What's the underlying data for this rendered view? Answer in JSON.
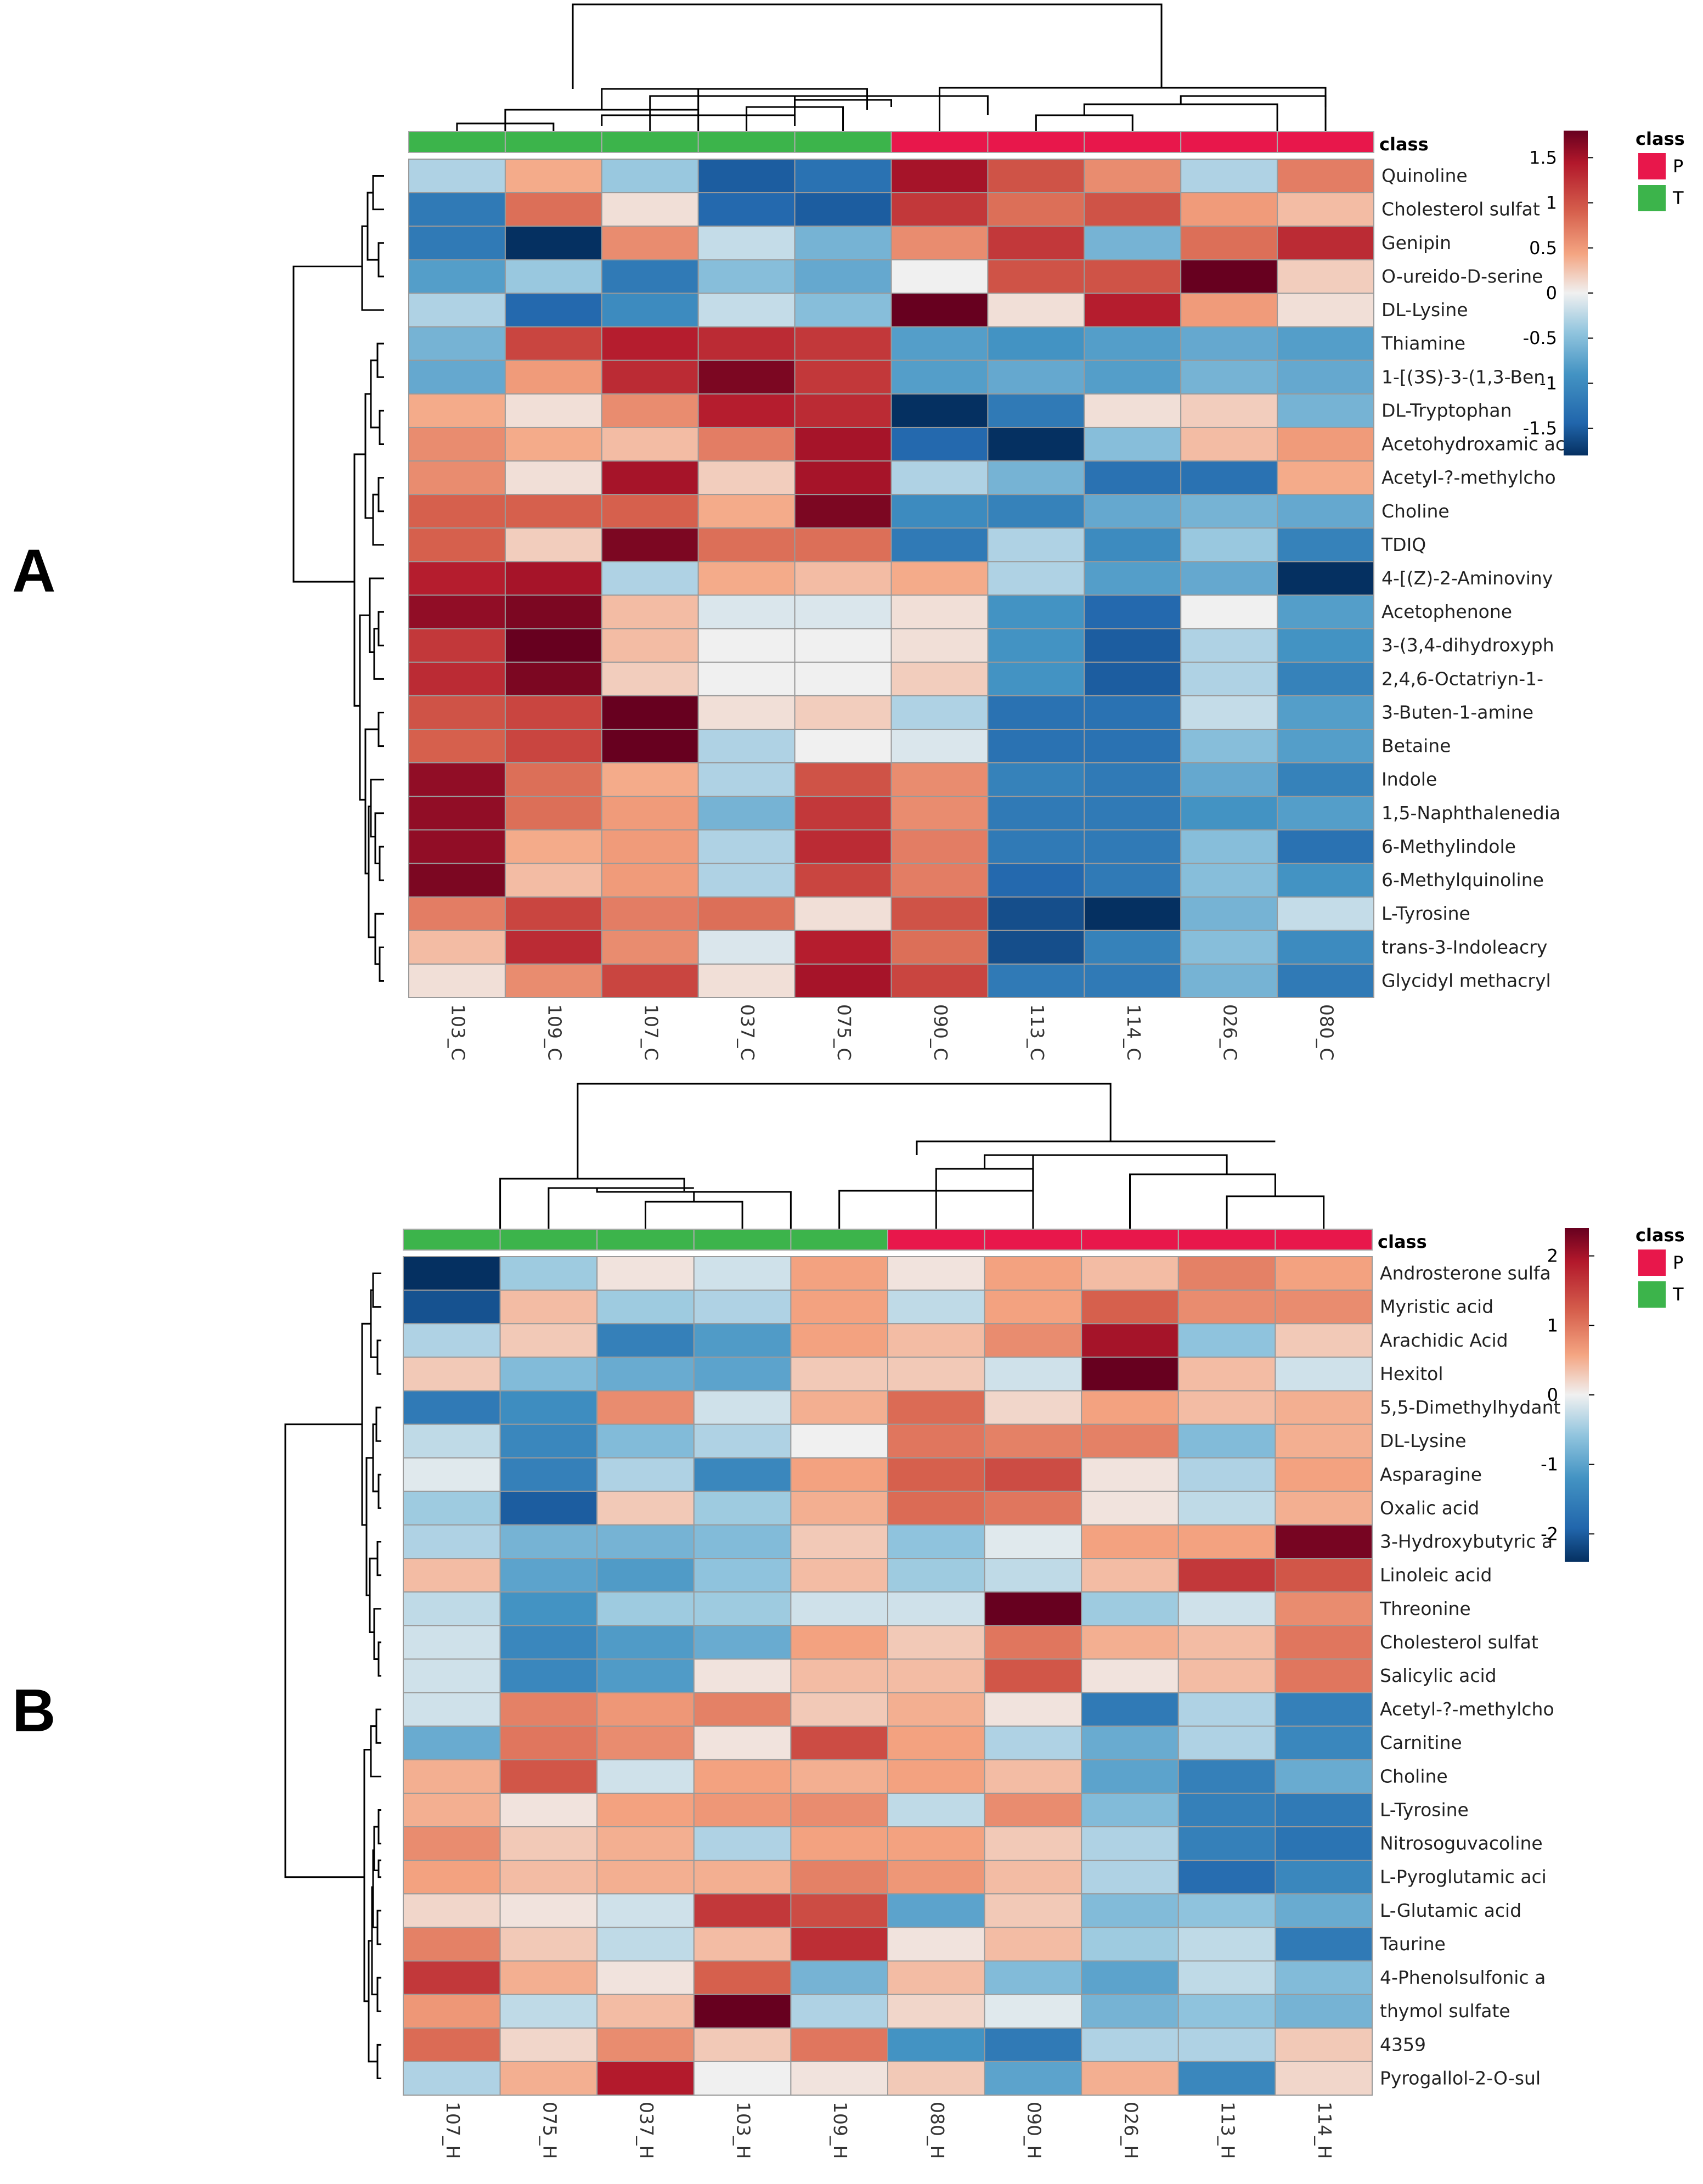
{
  "panels": [
    {
      "letter": "A",
      "chart_data": {
        "type": "heatmap",
        "title": "",
        "class_label": "class",
        "classes": [
          {
            "name": "P",
            "color": "#e8174b"
          },
          {
            "name": "T",
            "color": "#3cb44b"
          }
        ],
        "columns": [
          "103_C",
          "109_C",
          "107_C",
          "037_C",
          "075_C",
          "090_C",
          "113_C",
          "114_C",
          "026_C",
          "080_C"
        ],
        "column_classes": [
          "T",
          "T",
          "T",
          "T",
          "T",
          "P",
          "P",
          "P",
          "P",
          "P"
        ],
        "rows": [
          "Quinoline",
          "Cholesterol sulfat",
          "Genipin",
          "O-ureido-D-serine",
          "DL-Lysine",
          "Thiamine",
          "1-[(3S)-3-(1,3-Ben",
          "DL-Tryptophan",
          "Acetohydroxamic ac",
          "Acetyl-?-methylcho",
          "Choline",
          "TDIQ",
          "4-[(Z)-2-Aminoviny",
          "Acetophenone",
          "3-(3,4-dihydroxyph",
          "2,4,6-Octatriyn-1-",
          "3-Buten-1-amine",
          "Betaine",
          "Indole",
          "1,5-Naphthalenedia",
          "6-Methylindole",
          "6-Methylquinoline",
          "L-Tyrosine",
          "trans-3-Indoleacry",
          "Glycidyl methacryl"
        ],
        "values": [
          [
            -0.3,
            0.4,
            -0.4,
            -1.5,
            -1.3,
            1.5,
            1.0,
            0.6,
            -0.3,
            0.7
          ],
          [
            -1.2,
            0.8,
            0.1,
            -1.4,
            -1.5,
            1.2,
            0.8,
            1.0,
            0.5,
            0.3
          ],
          [
            -1.2,
            -1.9,
            0.6,
            -0.2,
            -0.6,
            0.6,
            1.2,
            -0.6,
            0.8,
            1.3
          ],
          [
            -0.8,
            -0.4,
            -1.2,
            -0.5,
            -0.7,
            0.0,
            1.0,
            1.0,
            1.8,
            0.2
          ],
          [
            -0.3,
            -1.4,
            -1.0,
            -0.2,
            -0.5,
            1.8,
            0.1,
            1.4,
            0.5,
            0.1
          ],
          [
            -0.6,
            1.1,
            1.4,
            1.3,
            1.2,
            -0.8,
            -0.9,
            -0.8,
            -0.7,
            -0.8
          ],
          [
            -0.7,
            0.5,
            1.3,
            1.7,
            1.2,
            -0.8,
            -0.7,
            -0.8,
            -0.6,
            -0.7
          ],
          [
            0.4,
            0.1,
            0.6,
            1.4,
            1.3,
            -1.8,
            -1.2,
            0.1,
            0.2,
            -0.6
          ],
          [
            0.6,
            0.4,
            0.3,
            0.7,
            1.5,
            -1.4,
            -1.8,
            -0.5,
            0.3,
            0.5
          ],
          [
            0.6,
            0.1,
            1.5,
            0.2,
            1.5,
            -0.3,
            -0.6,
            -1.3,
            -1.3,
            0.4
          ],
          [
            0.9,
            0.9,
            0.9,
            0.4,
            1.7,
            -1.0,
            -1.1,
            -0.7,
            -0.6,
            -0.7
          ],
          [
            0.9,
            0.2,
            1.7,
            0.8,
            0.8,
            -1.2,
            -0.3,
            -1.0,
            -0.4,
            -1.1
          ],
          [
            1.4,
            1.5,
            -0.3,
            0.4,
            0.3,
            0.4,
            -0.3,
            -0.8,
            -0.7,
            -1.9
          ],
          [
            1.6,
            1.7,
            0.3,
            -0.1,
            -0.1,
            0.1,
            -0.9,
            -1.4,
            0.0,
            -0.8
          ],
          [
            1.2,
            1.8,
            0.3,
            0.0,
            0.0,
            0.1,
            -0.9,
            -1.5,
            -0.3,
            -0.9
          ],
          [
            1.3,
            1.7,
            0.2,
            0.0,
            0.0,
            0.2,
            -0.9,
            -1.5,
            -0.3,
            -1.1
          ],
          [
            1.0,
            1.1,
            1.8,
            0.1,
            0.2,
            -0.3,
            -1.3,
            -1.3,
            -0.2,
            -0.8
          ],
          [
            0.9,
            1.1,
            1.8,
            -0.3,
            0.0,
            -0.1,
            -1.3,
            -1.3,
            -0.5,
            -0.8
          ],
          [
            1.6,
            0.8,
            0.4,
            -0.3,
            1.0,
            0.6,
            -1.1,
            -1.2,
            -0.7,
            -1.1
          ],
          [
            1.6,
            0.8,
            0.5,
            -0.6,
            1.2,
            0.6,
            -1.2,
            -1.2,
            -0.9,
            -0.8
          ],
          [
            1.6,
            0.4,
            0.5,
            -0.3,
            1.3,
            0.7,
            -1.2,
            -1.2,
            -0.5,
            -1.3
          ],
          [
            1.7,
            0.3,
            0.5,
            -0.3,
            1.1,
            0.7,
            -1.4,
            -1.2,
            -0.5,
            -0.9
          ],
          [
            0.7,
            1.1,
            0.7,
            0.8,
            0.1,
            1.0,
            -1.6,
            -1.8,
            -0.6,
            -0.2
          ],
          [
            0.3,
            1.3,
            0.6,
            -0.1,
            1.4,
            0.8,
            -1.6,
            -1.1,
            -0.5,
            -1.0
          ],
          [
            0.1,
            0.6,
            1.1,
            0.1,
            1.5,
            1.1,
            -1.2,
            -1.2,
            -0.6,
            -1.2
          ]
        ],
        "color_scale": {
          "min": -1.8,
          "max": 1.8,
          "ticks": [
            "1.5",
            "1",
            "0.5",
            "0",
            "-0.5",
            "-1",
            "-1.5"
          ],
          "tick_values": [
            1.5,
            1,
            0.5,
            0,
            -0.5,
            -1,
            -1.5
          ]
        }
      }
    },
    {
      "letter": "B",
      "chart_data": {
        "type": "heatmap",
        "title": "",
        "class_label": "class",
        "classes": [
          {
            "name": "P",
            "color": "#e8174b"
          },
          {
            "name": "T",
            "color": "#3cb44b"
          }
        ],
        "columns": [
          "107_H",
          "075_H",
          "037_H",
          "103_H",
          "109_H",
          "080_H",
          "090_H",
          "026_H",
          "113_H",
          "114_H"
        ],
        "column_classes": [
          "T",
          "T",
          "T",
          "T",
          "T",
          "P",
          "P",
          "P",
          "P",
          "P"
        ],
        "rows": [
          "Androsterone sulfa",
          "Myristic acid",
          "Arachidic Acid",
          "Hexitol",
          "5,5-Dimethylhydant",
          "DL-Lysine",
          "Asparagine",
          "Oxalic acid",
          "3-Hydroxybutyric a",
          "Linoleic acid",
          "Threonine",
          "Cholesterol sulfat",
          "Salicylic acid",
          "Acetyl-?-methylcho",
          "Carnitine",
          "Choline",
          "L-Tyrosine",
          "Nitrosoguvacoline",
          "L-Pyroglutamic aci",
          "L-Glutamic acid",
          "Taurine",
          "4-Phenolsulfonic a",
          "thymol sulfate",
          "4359",
          "Pyrogallol-2-O-sul"
        ],
        "values": [
          [
            -2.4,
            -0.5,
            0.1,
            -0.2,
            0.6,
            0.1,
            0.6,
            0.4,
            0.9,
            0.6
          ],
          [
            -2.1,
            0.4,
            -0.5,
            -0.4,
            0.6,
            -0.3,
            0.6,
            1.2,
            0.8,
            0.8
          ],
          [
            -0.4,
            0.3,
            -1.5,
            -1.1,
            0.6,
            0.4,
            0.8,
            2.0,
            -0.6,
            0.3
          ],
          [
            0.3,
            -0.7,
            -0.9,
            -1.0,
            0.3,
            0.3,
            -0.2,
            2.4,
            0.4,
            -0.2
          ],
          [
            -1.6,
            -1.3,
            0.8,
            -0.2,
            0.5,
            1.1,
            0.2,
            0.6,
            0.4,
            0.5
          ],
          [
            -0.3,
            -1.4,
            -0.7,
            -0.4,
            0.0,
            1.0,
            0.9,
            0.9,
            -0.7,
            0.5
          ],
          [
            -0.1,
            -1.5,
            -0.4,
            -1.4,
            0.6,
            1.2,
            1.4,
            0.1,
            -0.4,
            0.6
          ],
          [
            -0.5,
            -2.0,
            0.3,
            -0.5,
            0.5,
            1.1,
            1.0,
            0.1,
            -0.3,
            0.5
          ],
          [
            -0.4,
            -0.8,
            -0.8,
            -0.7,
            0.3,
            -0.6,
            -0.1,
            0.6,
            0.6,
            2.3
          ],
          [
            0.4,
            -1.0,
            -1.1,
            -0.6,
            0.4,
            -0.5,
            -0.3,
            0.4,
            1.6,
            1.3
          ],
          [
            -0.3,
            -1.2,
            -0.5,
            -0.5,
            -0.2,
            -0.2,
            2.4,
            -0.5,
            -0.2,
            0.8
          ],
          [
            -0.2,
            -1.4,
            -1.1,
            -0.9,
            0.6,
            0.3,
            1.0,
            0.5,
            0.4,
            1.0
          ],
          [
            -0.2,
            -1.4,
            -1.1,
            0.1,
            0.4,
            0.4,
            1.3,
            0.1,
            0.4,
            1.0
          ],
          [
            -0.2,
            0.9,
            0.7,
            0.9,
            0.3,
            0.5,
            0.1,
            -1.6,
            -0.4,
            -1.5
          ],
          [
            -0.9,
            1.0,
            0.8,
            0.1,
            1.4,
            0.6,
            -0.4,
            -0.9,
            -0.4,
            -1.4
          ],
          [
            0.5,
            1.3,
            -0.2,
            0.6,
            0.5,
            0.6,
            0.4,
            -1.0,
            -1.5,
            -0.9
          ],
          [
            0.5,
            0.1,
            0.6,
            0.7,
            0.8,
            -0.3,
            0.8,
            -0.7,
            -1.5,
            -1.6
          ],
          [
            0.8,
            0.3,
            0.5,
            -0.4,
            0.6,
            0.6,
            0.3,
            -0.4,
            -1.5,
            -1.7
          ],
          [
            0.6,
            0.4,
            0.5,
            0.5,
            0.9,
            0.7,
            0.4,
            -0.4,
            -1.8,
            -1.4
          ],
          [
            0.2,
            0.1,
            -0.2,
            1.6,
            1.4,
            -1.0,
            0.3,
            -0.7,
            -0.6,
            -0.9
          ],
          [
            0.9,
            0.3,
            -0.3,
            0.4,
            1.7,
            0.1,
            0.4,
            -0.5,
            -0.3,
            -1.6
          ],
          [
            1.6,
            0.5,
            0.1,
            1.2,
            -0.8,
            0.4,
            -0.7,
            -1.0,
            -0.3,
            -0.7
          ],
          [
            0.7,
            -0.3,
            0.4,
            2.4,
            -0.4,
            0.2,
            -0.1,
            -0.8,
            -0.6,
            -0.8
          ],
          [
            1.1,
            0.2,
            0.8,
            0.3,
            1.0,
            -1.2,
            -1.6,
            -0.4,
            -0.4,
            0.3
          ],
          [
            -0.4,
            0.5,
            1.9,
            0.0,
            0.1,
            0.3,
            -1.0,
            0.5,
            -1.4,
            0.2
          ]
        ],
        "color_scale": {
          "min": -2.4,
          "max": 2.4,
          "ticks": [
            "2",
            "1",
            "0",
            "-1",
            "-2"
          ],
          "tick_values": [
            2,
            1,
            0,
            -1,
            -2
          ]
        }
      }
    }
  ]
}
